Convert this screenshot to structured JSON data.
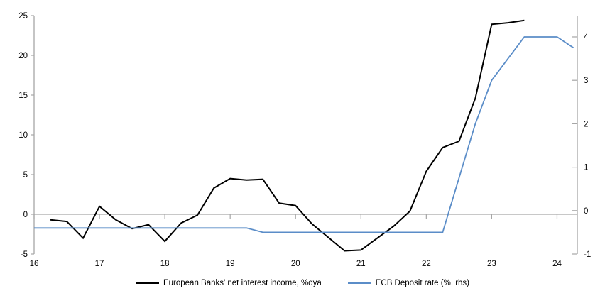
{
  "chart_data": {
    "type": "line",
    "title": "",
    "grid": false,
    "zero_line": true,
    "legend_position": "bottom-center",
    "axis_color": "#a6a6a6",
    "text_color": "#000000",
    "x_axis": {
      "range": [
        16,
        24.31
      ],
      "ticks": [
        16,
        17,
        18,
        19,
        20,
        21,
        22,
        23,
        24
      ]
    },
    "left_axis": {
      "range": [
        -5,
        25
      ],
      "ticks": [
        -5,
        0,
        5,
        10,
        15,
        20,
        25
      ]
    },
    "right_axis": {
      "range": [
        -1,
        4.49
      ],
      "ticks": [
        -1,
        0,
        1,
        2,
        3,
        4
      ]
    },
    "series": [
      {
        "name": "European Banks' net interest income, %oya",
        "axis": "left",
        "color": "#000000",
        "line_width": 2,
        "x": [
          16.25,
          16.5,
          16.75,
          17.0,
          17.25,
          17.5,
          17.75,
          18.0,
          18.25,
          18.5,
          18.75,
          19.0,
          19.25,
          19.5,
          19.75,
          20.0,
          20.25,
          20.5,
          20.75,
          21.0,
          21.25,
          21.5,
          21.75,
          22.0,
          22.25,
          22.5,
          22.75,
          23.0,
          23.25,
          23.5
        ],
        "values": [
          -0.7,
          -0.9,
          -3.0,
          1.0,
          -0.7,
          -1.8,
          -1.3,
          -3.4,
          -1.1,
          -0.1,
          3.3,
          4.5,
          4.3,
          4.4,
          1.4,
          1.1,
          -1.2,
          -2.9,
          -4.6,
          -4.5,
          -3.0,
          -1.5,
          0.4,
          5.4,
          8.4,
          9.2,
          14.6,
          23.9,
          24.1,
          24.4
        ]
      },
      {
        "name": "ECB Deposit rate (%, rhs)",
        "axis": "right",
        "color": "#5b8dc8",
        "line_width": 1.8,
        "x": [
          16.0,
          16.25,
          16.5,
          16.75,
          17.0,
          17.25,
          17.5,
          17.75,
          18.0,
          18.25,
          18.5,
          18.75,
          19.0,
          19.25,
          19.5,
          19.75,
          20.0,
          20.25,
          20.5,
          20.75,
          21.0,
          21.25,
          21.5,
          21.75,
          22.0,
          22.25,
          22.5,
          22.75,
          23.0,
          23.25,
          23.5,
          23.75,
          24.0,
          24.25
        ],
        "values": [
          -0.4,
          -0.4,
          -0.4,
          -0.4,
          -0.4,
          -0.4,
          -0.4,
          -0.4,
          -0.4,
          -0.4,
          -0.4,
          -0.4,
          -0.4,
          -0.4,
          -0.5,
          -0.5,
          -0.5,
          -0.5,
          -0.5,
          -0.5,
          -0.5,
          -0.5,
          -0.5,
          -0.5,
          -0.5,
          -0.5,
          0.75,
          2.0,
          3.0,
          3.5,
          4.0,
          4.0,
          4.0,
          3.75
        ]
      }
    ]
  }
}
